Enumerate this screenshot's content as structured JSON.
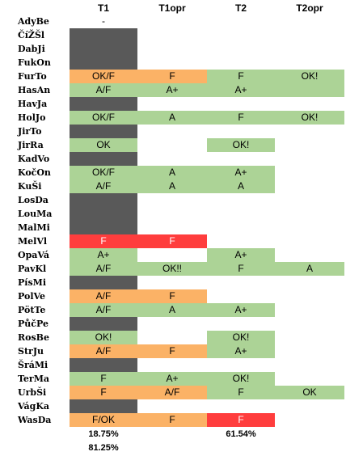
{
  "colors": {
    "dark": "#595959",
    "orange": "#fbb266",
    "green": "#acd396",
    "red": "#ff3d3d",
    "none": "transparent"
  },
  "headers": [
    "T1",
    "T1opr",
    "T2",
    "T2opr"
  ],
  "rows": [
    {
      "name": "AdyBe",
      "cells": [
        {
          "t": "-",
          "c": "none"
        },
        {
          "t": "",
          "c": "none"
        },
        {
          "t": "",
          "c": "none"
        },
        {
          "t": "",
          "c": "none"
        }
      ]
    },
    {
      "name": "ČíŽŠl",
      "cells": [
        {
          "t": "",
          "c": "dark"
        },
        {
          "t": "",
          "c": "none"
        },
        {
          "t": "",
          "c": "none"
        },
        {
          "t": "",
          "c": "none"
        }
      ]
    },
    {
      "name": "DabJi",
      "cells": [
        {
          "t": "",
          "c": "dark"
        },
        {
          "t": "",
          "c": "none"
        },
        {
          "t": "",
          "c": "none"
        },
        {
          "t": "",
          "c": "none"
        }
      ]
    },
    {
      "name": "FukOn",
      "cells": [
        {
          "t": "",
          "c": "dark"
        },
        {
          "t": "",
          "c": "none"
        },
        {
          "t": "",
          "c": "none"
        },
        {
          "t": "",
          "c": "none"
        }
      ]
    },
    {
      "name": "FurTo",
      "cells": [
        {
          "t": "OK/F",
          "c": "orange"
        },
        {
          "t": "F",
          "c": "orange"
        },
        {
          "t": "F",
          "c": "green"
        },
        {
          "t": "OK!",
          "c": "green"
        }
      ]
    },
    {
      "name": "HasAn",
      "cells": [
        {
          "t": "A/F",
          "c": "green"
        },
        {
          "t": "A+",
          "c": "green"
        },
        {
          "t": "A+",
          "c": "green"
        },
        {
          "t": "",
          "c": "green"
        }
      ]
    },
    {
      "name": "HavJa",
      "cells": [
        {
          "t": "",
          "c": "dark"
        },
        {
          "t": "",
          "c": "none"
        },
        {
          "t": "",
          "c": "none"
        },
        {
          "t": "",
          "c": "none"
        }
      ]
    },
    {
      "name": "HolJo",
      "cells": [
        {
          "t": "OK/F",
          "c": "green"
        },
        {
          "t": "A",
          "c": "green"
        },
        {
          "t": "F",
          "c": "green"
        },
        {
          "t": "OK!",
          "c": "green"
        }
      ]
    },
    {
      "name": "JirTo",
      "cells": [
        {
          "t": "",
          "c": "dark"
        },
        {
          "t": "",
          "c": "none"
        },
        {
          "t": "",
          "c": "none"
        },
        {
          "t": "",
          "c": "none"
        }
      ]
    },
    {
      "name": "JirRa",
      "cells": [
        {
          "t": "OK",
          "c": "green"
        },
        {
          "t": "",
          "c": "none"
        },
        {
          "t": "OK!",
          "c": "green"
        },
        {
          "t": "",
          "c": "none"
        }
      ]
    },
    {
      "name": "KadVo",
      "cells": [
        {
          "t": "",
          "c": "dark"
        },
        {
          "t": "",
          "c": "none"
        },
        {
          "t": "",
          "c": "none"
        },
        {
          "t": "",
          "c": "none"
        }
      ]
    },
    {
      "name": "KočOn",
      "cells": [
        {
          "t": "OK/F",
          "c": "green"
        },
        {
          "t": "A",
          "c": "green"
        },
        {
          "t": "A+",
          "c": "green"
        },
        {
          "t": "",
          "c": "none"
        }
      ]
    },
    {
      "name": "KuŠi",
      "cells": [
        {
          "t": "A/F",
          "c": "green"
        },
        {
          "t": "A",
          "c": "green"
        },
        {
          "t": "A",
          "c": "green"
        },
        {
          "t": "",
          "c": "none"
        }
      ]
    },
    {
      "name": "LosDa",
      "cells": [
        {
          "t": "",
          "c": "dark"
        },
        {
          "t": "",
          "c": "none"
        },
        {
          "t": "",
          "c": "none"
        },
        {
          "t": "",
          "c": "none"
        }
      ]
    },
    {
      "name": "LouMa",
      "cells": [
        {
          "t": "",
          "c": "dark"
        },
        {
          "t": "",
          "c": "none"
        },
        {
          "t": "",
          "c": "none"
        },
        {
          "t": "",
          "c": "none"
        }
      ]
    },
    {
      "name": "MalMi",
      "cells": [
        {
          "t": "",
          "c": "dark"
        },
        {
          "t": "",
          "c": "none"
        },
        {
          "t": "",
          "c": "none"
        },
        {
          "t": "",
          "c": "none"
        }
      ]
    },
    {
      "name": "MelVl",
      "cells": [
        {
          "t": "F",
          "c": "red"
        },
        {
          "t": "F",
          "c": "red"
        },
        {
          "t": "",
          "c": "none"
        },
        {
          "t": "",
          "c": "none"
        }
      ]
    },
    {
      "name": "OpaVá",
      "cells": [
        {
          "t": "A+",
          "c": "green"
        },
        {
          "t": "",
          "c": "none"
        },
        {
          "t": "A+",
          "c": "green"
        },
        {
          "t": "",
          "c": "none"
        }
      ]
    },
    {
      "name": "PavKl",
      "cells": [
        {
          "t": "A/F",
          "c": "green"
        },
        {
          "t": "OK!!",
          "c": "green"
        },
        {
          "t": "F",
          "c": "green"
        },
        {
          "t": "A",
          "c": "green"
        }
      ]
    },
    {
      "name": "PísMi",
      "cells": [
        {
          "t": "",
          "c": "dark"
        },
        {
          "t": "",
          "c": "none"
        },
        {
          "t": "",
          "c": "none"
        },
        {
          "t": "",
          "c": "none"
        }
      ]
    },
    {
      "name": "PolVe",
      "cells": [
        {
          "t": "A/F",
          "c": "orange"
        },
        {
          "t": "F",
          "c": "orange"
        },
        {
          "t": "",
          "c": "none"
        },
        {
          "t": "",
          "c": "none"
        }
      ]
    },
    {
      "name": "PötTe",
      "cells": [
        {
          "t": "A/F",
          "c": "green"
        },
        {
          "t": "A",
          "c": "green"
        },
        {
          "t": "A+",
          "c": "green"
        },
        {
          "t": "",
          "c": "none"
        }
      ]
    },
    {
      "name": "PůčPe",
      "cells": [
        {
          "t": "",
          "c": "dark"
        },
        {
          "t": "",
          "c": "none"
        },
        {
          "t": "",
          "c": "none"
        },
        {
          "t": "",
          "c": "none"
        }
      ]
    },
    {
      "name": "RosBe",
      "cells": [
        {
          "t": "OK!",
          "c": "green"
        },
        {
          "t": "",
          "c": "none"
        },
        {
          "t": "OK!",
          "c": "green"
        },
        {
          "t": "",
          "c": "none"
        }
      ]
    },
    {
      "name": "StrJu",
      "cells": [
        {
          "t": "A/F",
          "c": "orange"
        },
        {
          "t": "F",
          "c": "orange"
        },
        {
          "t": "A+",
          "c": "green"
        },
        {
          "t": "",
          "c": "none"
        }
      ]
    },
    {
      "name": "ŠráMi",
      "cells": [
        {
          "t": "",
          "c": "dark"
        },
        {
          "t": "",
          "c": "none"
        },
        {
          "t": "",
          "c": "none"
        },
        {
          "t": "",
          "c": "none"
        }
      ]
    },
    {
      "name": "TerMa",
      "cells": [
        {
          "t": "F",
          "c": "green"
        },
        {
          "t": "A+",
          "c": "green"
        },
        {
          "t": "OK!",
          "c": "green"
        },
        {
          "t": "",
          "c": "none"
        }
      ]
    },
    {
      "name": "UrbŠi",
      "cells": [
        {
          "t": "F",
          "c": "orange"
        },
        {
          "t": "A/F",
          "c": "orange"
        },
        {
          "t": "F",
          "c": "green"
        },
        {
          "t": "OK",
          "c": "green"
        }
      ]
    },
    {
      "name": "VágKa",
      "cells": [
        {
          "t": "",
          "c": "dark"
        },
        {
          "t": "",
          "c": "none"
        },
        {
          "t": "",
          "c": "none"
        },
        {
          "t": "",
          "c": "none"
        }
      ]
    },
    {
      "name": "WasDa",
      "cells": [
        {
          "t": "F/OK",
          "c": "orange"
        },
        {
          "t": "F",
          "c": "orange"
        },
        {
          "t": "F",
          "c": "red"
        },
        {
          "t": "",
          "c": "none"
        }
      ]
    }
  ],
  "footer": {
    "t1_pct_a": "18.75%",
    "t1_pct_b": "81.25%",
    "t2_pct": "61.54%"
  }
}
